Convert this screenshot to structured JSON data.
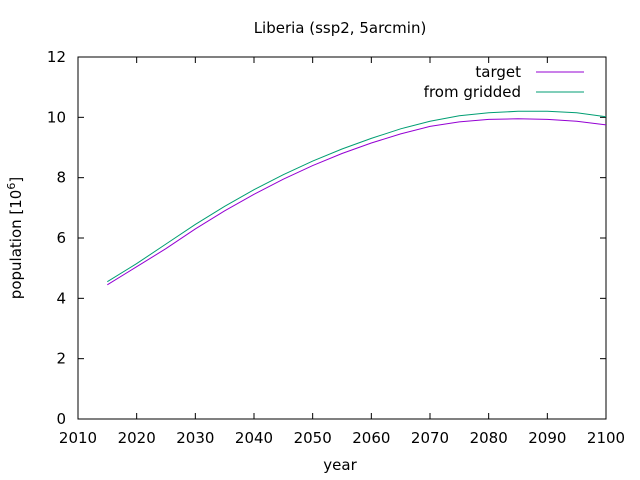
{
  "chart_data": {
    "type": "line",
    "title": "Liberia (ssp2, 5arcmin)",
    "xlabel": "year",
    "ylabel_prefix": "population [10",
    "ylabel_exp": "6",
    "ylabel_suffix": "]",
    "xlim": [
      2010,
      2100
    ],
    "ylim": [
      0,
      12
    ],
    "xticks": [
      2010,
      2020,
      2030,
      2040,
      2050,
      2060,
      2070,
      2080,
      2090,
      2100
    ],
    "yticks": [
      0,
      2,
      4,
      6,
      8,
      10,
      12
    ],
    "grid": false,
    "legend_position": "top-right",
    "x": [
      2015,
      2020,
      2025,
      2030,
      2035,
      2040,
      2045,
      2050,
      2055,
      2060,
      2065,
      2070,
      2075,
      2080,
      2085,
      2090,
      2095,
      2100
    ],
    "series": [
      {
        "name": "target",
        "color": "#9400d3",
        "values": [
          4.45,
          5.05,
          5.65,
          6.3,
          6.9,
          7.45,
          7.95,
          8.4,
          8.8,
          9.15,
          9.45,
          9.7,
          9.85,
          9.93,
          9.95,
          9.93,
          9.87,
          9.75
        ]
      },
      {
        "name": "from gridded",
        "color": "#009e73",
        "values": [
          4.55,
          5.15,
          5.8,
          6.45,
          7.05,
          7.6,
          8.1,
          8.55,
          8.95,
          9.3,
          9.62,
          9.87,
          10.05,
          10.15,
          10.2,
          10.2,
          10.15,
          10.02
        ]
      }
    ]
  }
}
